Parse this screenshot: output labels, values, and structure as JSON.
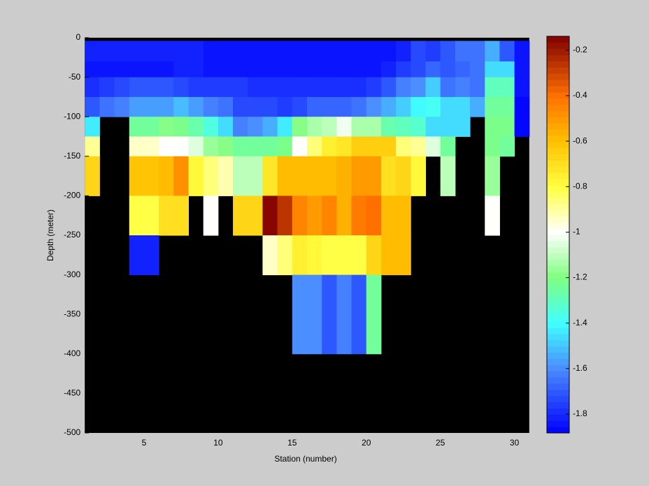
{
  "chart_data": {
    "type": "heatmap",
    "xlabel": "Station (number)",
    "ylabel": "Depth (meter)",
    "x_edges": [
      1,
      2,
      3,
      4,
      5,
      6,
      7,
      8,
      9,
      10,
      11,
      12,
      13,
      14,
      15,
      16,
      17,
      18,
      19,
      20,
      21,
      22,
      23,
      24,
      25,
      26,
      27,
      28,
      29,
      30,
      31
    ],
    "y_edges": [
      -4,
      -30,
      -50,
      -75,
      -100,
      -125,
      -150,
      -200,
      -250,
      -300,
      -400
    ],
    "z": [
      [
        -1.82,
        -1.82,
        -1.82,
        -1.82,
        -1.82,
        -1.82,
        -1.82,
        -1.82,
        -1.85,
        -1.85,
        -1.85,
        -1.85,
        -1.85,
        -1.83,
        -1.83,
        -1.83,
        -1.83,
        -1.83,
        -1.83,
        -1.83,
        -1.83,
        -1.82,
        -1.72,
        -1.75,
        -1.7,
        -1.66,
        -1.66,
        -1.55,
        -1.7,
        -1.85
      ],
      [
        -1.83,
        -1.83,
        -1.83,
        -1.84,
        -1.84,
        -1.85,
        -1.82,
        -1.82,
        -1.83,
        -1.83,
        -1.83,
        -1.83,
        -1.83,
        -1.83,
        -1.83,
        -1.83,
        -1.83,
        -1.83,
        -1.83,
        -1.83,
        -1.82,
        -1.75,
        -1.72,
        -1.68,
        -1.7,
        -1.67,
        -1.66,
        -1.45,
        -1.45,
        -1.85
      ],
      [
        -1.78,
        -1.76,
        -1.72,
        -1.7,
        -1.7,
        -1.7,
        -1.72,
        -1.75,
        -1.75,
        -1.75,
        -1.75,
        -1.78,
        -1.78,
        -1.78,
        -1.78,
        -1.78,
        -1.78,
        -1.78,
        -1.78,
        -1.75,
        -1.7,
        -1.62,
        -1.6,
        -1.5,
        -1.65,
        -1.62,
        -1.65,
        -1.3,
        -1.3,
        -1.85
      ],
      [
        -1.7,
        -1.65,
        -1.63,
        -1.58,
        -1.58,
        -1.58,
        -1.52,
        -1.58,
        -1.62,
        -1.65,
        -1.72,
        -1.72,
        -1.72,
        -1.75,
        -1.73,
        -1.68,
        -1.68,
        -1.68,
        -1.66,
        -1.6,
        -1.55,
        -1.5,
        -1.4,
        -1.38,
        -1.45,
        -1.45,
        -1.55,
        -1.25,
        -1.25,
        -1.86
      ],
      [
        -1.42,
        null,
        null,
        -1.25,
        -1.25,
        -1.2,
        -1.22,
        -1.28,
        -1.35,
        -1.45,
        -1.62,
        -1.6,
        -1.55,
        -1.42,
        -1.2,
        -1.12,
        -1.1,
        -1.03,
        -1.12,
        -1.12,
        -1.28,
        -1.3,
        -1.32,
        -1.45,
        -1.45,
        -1.45,
        null,
        -1.22,
        -1.22,
        -1.86
      ],
      [
        -0.9,
        null,
        null,
        -0.95,
        -0.95,
        -1.0,
        -1.0,
        -1.05,
        -1.15,
        -1.2,
        -1.25,
        -1.25,
        -1.25,
        -1.22,
        -1.0,
        -0.85,
        -0.75,
        -0.72,
        -0.65,
        -0.65,
        -0.65,
        -0.85,
        -0.9,
        -1.05,
        -1.25,
        null,
        null,
        -1.22,
        -1.25,
        null
      ],
      [
        -0.68,
        null,
        null,
        -0.62,
        -0.62,
        -0.58,
        -0.48,
        -0.78,
        -0.85,
        -0.92,
        -1.1,
        -1.1,
        -0.72,
        -0.6,
        -0.6,
        -0.6,
        -0.6,
        -0.55,
        -0.5,
        -0.5,
        -0.7,
        -0.68,
        -0.78,
        null,
        -1.1,
        null,
        null,
        -1.15,
        null,
        null
      ],
      [
        null,
        null,
        null,
        -0.8,
        -0.8,
        -0.7,
        -0.7,
        null,
        -1.0,
        null,
        -0.68,
        -0.68,
        -0.15,
        -0.25,
        -0.45,
        -0.52,
        -0.45,
        -0.55,
        -0.42,
        -0.4,
        -0.58,
        -0.58,
        null,
        null,
        null,
        null,
        null,
        -1.0,
        null,
        null
      ],
      [
        null,
        null,
        null,
        -1.82,
        -1.82,
        null,
        null,
        null,
        null,
        null,
        null,
        null,
        -0.95,
        -0.85,
        -0.75,
        -0.78,
        -0.82,
        -0.82,
        -0.82,
        -0.68,
        -0.58,
        -0.58,
        null,
        null,
        null,
        null,
        null,
        null,
        null,
        null
      ],
      [
        null,
        null,
        null,
        null,
        null,
        null,
        null,
        null,
        null,
        null,
        null,
        null,
        null,
        null,
        -1.6,
        -1.6,
        -1.7,
        -1.62,
        -1.7,
        -1.25,
        null,
        null,
        null,
        null,
        null,
        null,
        null,
        null,
        null,
        null
      ]
    ],
    "xlim": [
      1,
      31
    ],
    "ylim": [
      -500,
      0
    ],
    "xticks": [
      5,
      10,
      15,
      20,
      25,
      30
    ],
    "yticks": [
      0,
      -50,
      -100,
      -150,
      -200,
      -250,
      -300,
      -350,
      -400,
      -450,
      -500
    ],
    "zlim": [
      -1.883,
      -0.139
    ],
    "zticks": [
      -1.8,
      -1.6,
      -1.4,
      -1.2,
      -1,
      -0.8,
      -0.6,
      -0.4,
      -0.2
    ],
    "colormap": [
      {
        "at": 0,
        "color": "#0000ff"
      },
      {
        "at": 0.162,
        "color": "#4a8cff"
      },
      {
        "at": 0.277,
        "color": "#40ffff"
      },
      {
        "at": 0.392,
        "color": "#80ff80"
      },
      {
        "at": 0.506,
        "color": "#ffffff"
      },
      {
        "at": 0.621,
        "color": "#ffff40"
      },
      {
        "at": 0.736,
        "color": "#ffc000"
      },
      {
        "at": 0.85,
        "color": "#ff7000"
      },
      {
        "at": 1,
        "color": "#800000"
      }
    ],
    "colormap_levels": 64,
    "axes_color": "#000000",
    "background": "#cccccc"
  }
}
